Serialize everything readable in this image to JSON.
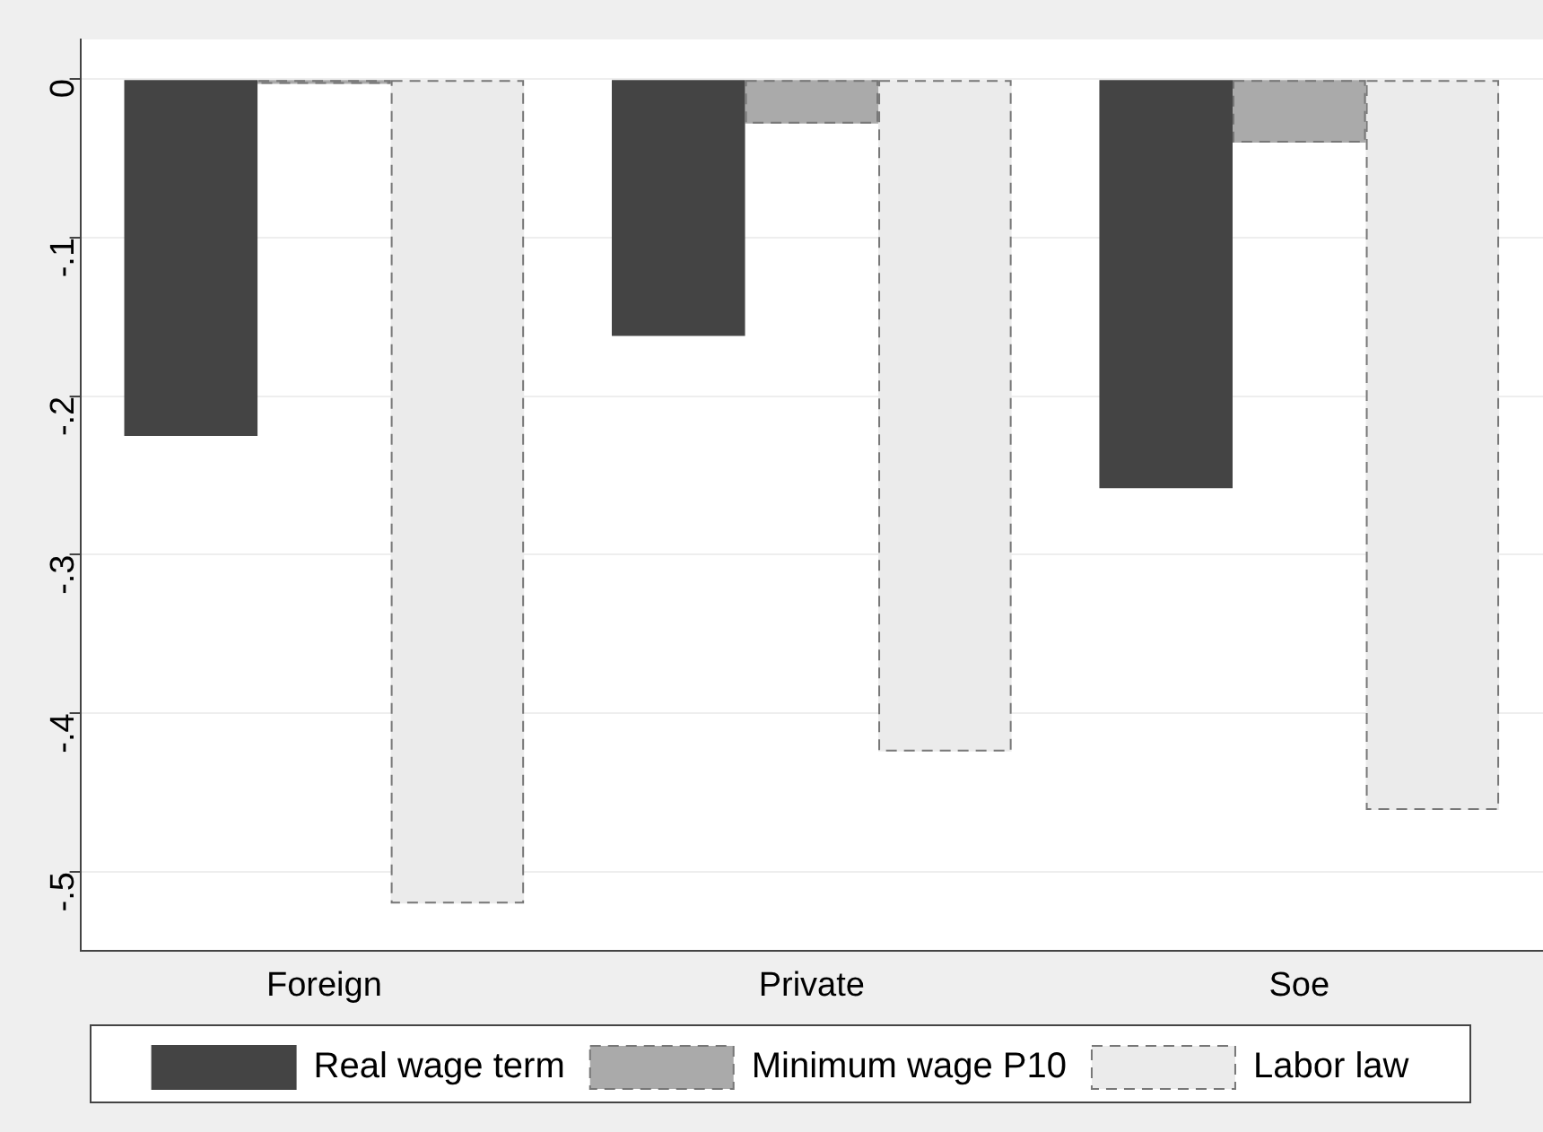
{
  "chart_data": {
    "type": "bar",
    "categories": [
      "Foreign",
      "Private",
      "Soe"
    ],
    "series": [
      {
        "name": "Real wage term",
        "color": "#444444",
        "values": [
          -0.225,
          -0.162,
          -0.258
        ]
      },
      {
        "name": "Minimum wage P10",
        "color": "#aaaaaa",
        "line_style": "dashed",
        "values": [
          -0.003,
          -0.028,
          -0.04
        ]
      },
      {
        "name": "Labor law",
        "color": "#ebebeb",
        "line_style": "dashed",
        "values": [
          -0.52,
          -0.424,
          -0.461
        ]
      }
    ],
    "ylim": [
      -0.55,
      0.025
    ],
    "yticks": [
      {
        "value": 0,
        "label": "0"
      },
      {
        "value": -0.1,
        "label": "-.1"
      },
      {
        "value": -0.2,
        "label": "-.2"
      },
      {
        "value": -0.3,
        "label": "-.3"
      },
      {
        "value": -0.4,
        "label": "-.4"
      },
      {
        "value": -0.5,
        "label": "-.5"
      }
    ],
    "grid": "y",
    "legend": "bottom"
  }
}
